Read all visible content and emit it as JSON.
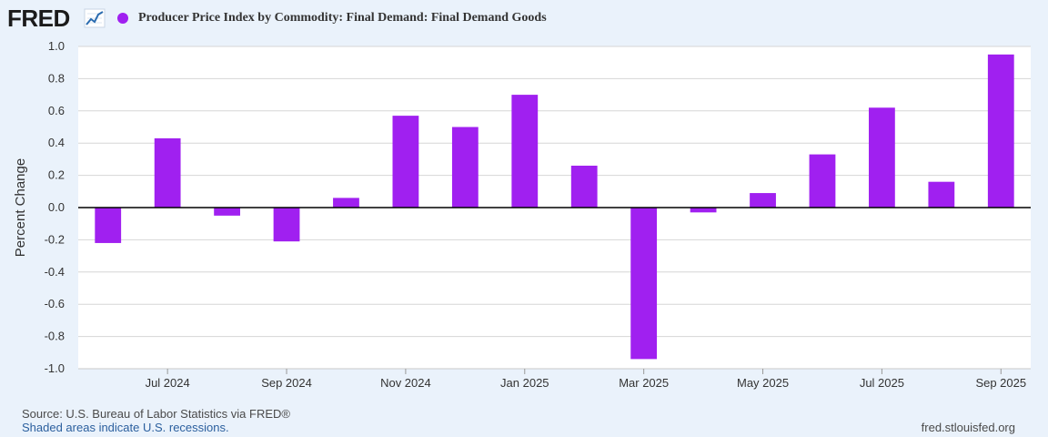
{
  "header": {
    "logo_text": "FRED",
    "logo_icon": "line-chart-icon",
    "series_color": "#a020f0"
  },
  "chart_data": {
    "type": "bar",
    "title": "Producer Price Index by Commodity: Final Demand: Final Demand Goods",
    "xlabel": "",
    "ylabel": "Percent Change",
    "ylim": [
      -1.0,
      1.0
    ],
    "yticks": [
      "1.0",
      "0.8",
      "0.6",
      "0.4",
      "0.2",
      "0.0",
      "-0.2",
      "-0.4",
      "-0.6",
      "-0.8",
      "-1.0"
    ],
    "ytick_values": [
      1.0,
      0.8,
      0.6,
      0.4,
      0.2,
      0.0,
      -0.2,
      -0.4,
      -0.6,
      -0.8,
      -1.0
    ],
    "xtick_labels": [
      "Jul 2024",
      "Sep 2024",
      "Nov 2024",
      "Jan 2025",
      "Mar 2025",
      "May 2025",
      "Jul 2025",
      "Sep 2025"
    ],
    "xtick_categories": [
      "2024-07",
      "2024-09",
      "2024-11",
      "2025-01",
      "2025-03",
      "2025-05",
      "2025-07",
      "2025-09"
    ],
    "categories": [
      "2024-06",
      "2024-07",
      "2024-08",
      "2024-09",
      "2024-10",
      "2024-11",
      "2024-12",
      "2025-01",
      "2025-02",
      "2025-03",
      "2025-04",
      "2025-05",
      "2025-06",
      "2025-07",
      "2025-08",
      "2025-09"
    ],
    "values": [
      -0.22,
      0.43,
      -0.05,
      -0.21,
      0.06,
      0.57,
      0.5,
      0.7,
      0.26,
      -0.94,
      -0.03,
      0.09,
      0.33,
      0.62,
      0.16,
      0.95
    ],
    "grid": true,
    "legend": "top-left"
  },
  "footer": {
    "source": "Source: U.S. Bureau of Labor Statistics via FRED®",
    "recession_note": "Shaded areas indicate U.S. recessions.",
    "site": "fred.stlouisfed.org"
  }
}
